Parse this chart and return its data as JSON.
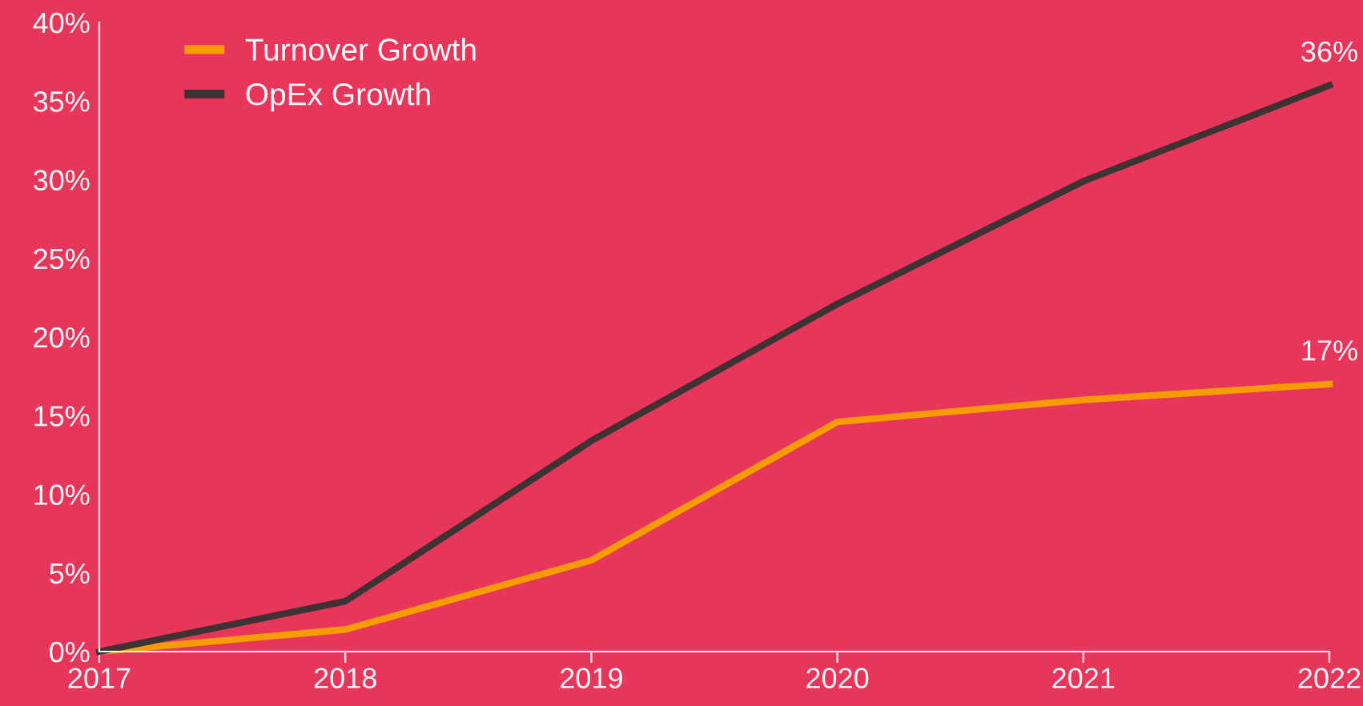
{
  "chart_data": {
    "type": "line",
    "x": [
      2017,
      2018,
      2019,
      2020,
      2021,
      2022
    ],
    "series": [
      {
        "name": "Turnover Growth",
        "color": "#f59c00",
        "values": [
          0,
          1.4,
          5.8,
          14.6,
          16.0,
          17
        ],
        "value_labels": [
          null,
          null,
          null,
          null,
          null,
          "17%"
        ]
      },
      {
        "name": "OpEx Growth",
        "color": "#3d3333",
        "values": [
          0,
          3.2,
          13.4,
          22.1,
          29.9,
          36
        ],
        "value_labels": [
          null,
          null,
          null,
          null,
          null,
          "36%"
        ]
      }
    ],
    "xlim": [
      2017,
      2022
    ],
    "xticks": [
      2017,
      2018,
      2019,
      2020,
      2021,
      2022
    ],
    "ylim": [
      0,
      40
    ],
    "yticks": [
      {
        "value": 0,
        "label": "0%"
      },
      {
        "value": 5,
        "label": "5%"
      },
      {
        "value": 10,
        "label": "10%"
      },
      {
        "value": 15,
        "label": "15%"
      },
      {
        "value": 20,
        "label": "20%"
      },
      {
        "value": 25,
        "label": "25%"
      },
      {
        "value": 30,
        "label": "30%"
      },
      {
        "value": 35,
        "label": "35%"
      },
      {
        "value": 40,
        "label": "40%"
      }
    ],
    "grid": false,
    "legend": "top left",
    "marker": "none",
    "line_style": "solid"
  }
}
